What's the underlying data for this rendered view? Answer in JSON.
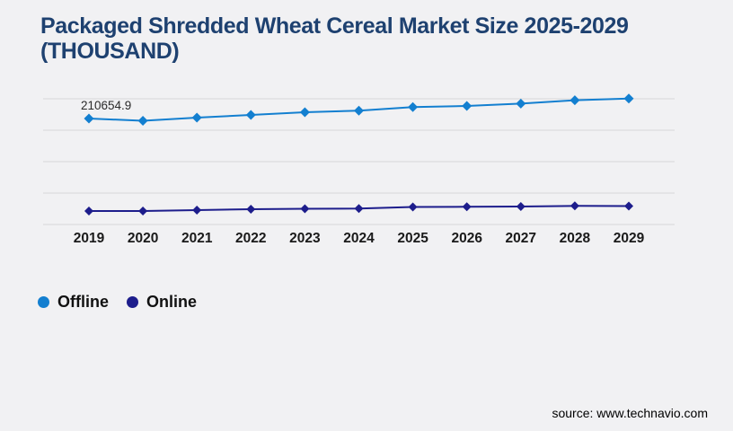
{
  "title": {
    "line1": "Packaged Shredded Wheat Cereal Market Size 2025-2029",
    "line2": "(THOUSAND)"
  },
  "source": "source: www.technavio.com",
  "legend": [
    {
      "label": "Offline",
      "color": "#137fd0"
    },
    {
      "label": "Online",
      "color": "#1d1d8c"
    }
  ],
  "colors": {
    "background": "#f1f1f3",
    "title": "#1e4170",
    "gridline": "#d8d8d8",
    "axis_label": "#1a1a1a",
    "offline_series": "#137fd0",
    "online_series": "#1d1d8c"
  },
  "chart_data": {
    "type": "line",
    "title": "Packaged Shredded Wheat Cereal Market Size 2025-2029 (THOUSAND)",
    "unit": "THOUSAND",
    "categories": [
      "2019",
      "2020",
      "2021",
      "2022",
      "2023",
      "2024",
      "2025",
      "2026",
      "2027",
      "2028",
      "2029"
    ],
    "series": [
      {
        "name": "Offline",
        "color": "#137fd0",
        "values": [
          210654.9,
          206300,
          212500,
          217900,
          223200,
          226300,
          233400,
          235700,
          240500,
          247000,
          250500
        ]
      },
      {
        "name": "Online",
        "color": "#1d1d8c",
        "values": [
          26800,
          26800,
          28600,
          30400,
          31300,
          31600,
          34800,
          35200,
          35700,
          37000,
          36600
        ]
      }
    ],
    "annotation": {
      "series_index": 0,
      "index": 0,
      "text": "210654.9"
    },
    "xlabel": "",
    "ylabel": "",
    "ylim": [
      0,
      250000
    ],
    "grid": "horizontal",
    "gridline_count": 5,
    "gridline_color": "#d8d8d8",
    "legend_position": "bottom-left",
    "marker": "diamond"
  }
}
